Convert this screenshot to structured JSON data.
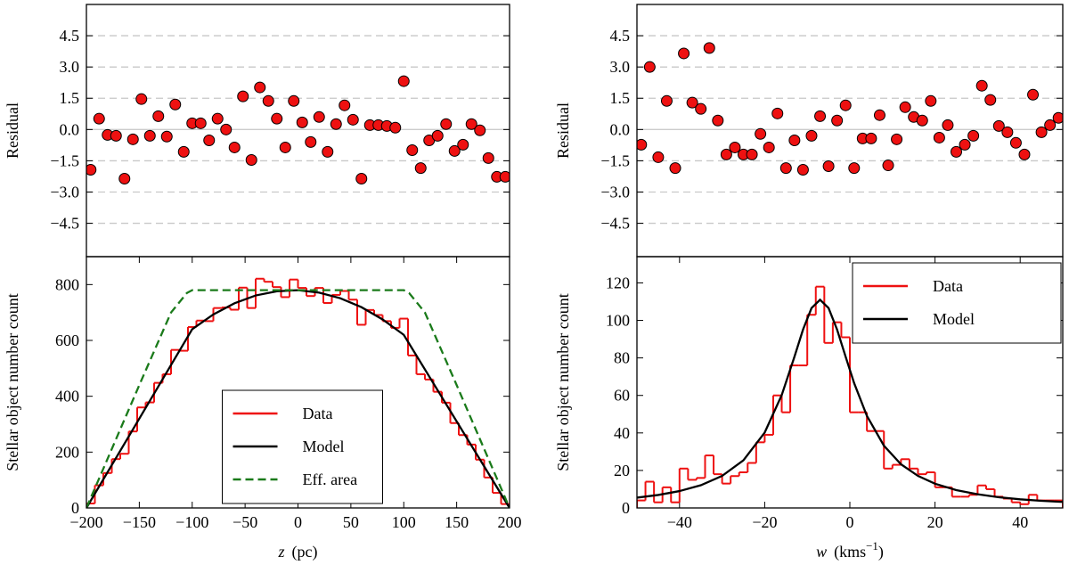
{
  "chart_data": [
    {
      "type": "scatter",
      "ylabel": "Residual",
      "color": "#ee1111",
      "grid": true,
      "xlim": [
        -200,
        200
      ],
      "ylim": [
        -6.1,
        6
      ],
      "yticks": [
        {
          "value": -4.5,
          "label": "−4.5"
        },
        {
          "value": -3,
          "label": "−3.0"
        },
        {
          "value": -1.5,
          "label": "−1.5"
        },
        {
          "value": 0,
          "label": "0.0"
        },
        1.5,
        {
          "value": 3,
          "label": "3.0"
        },
        4.5
      ],
      "x": [
        -196,
        -188,
        -180,
        -172,
        -164,
        -156,
        -148,
        -140,
        -132,
        -124,
        -116,
        -108,
        -100,
        -92,
        -84,
        -76,
        -68,
        -60,
        -52,
        -44,
        -36,
        -28,
        -20,
        -12,
        -4,
        4,
        12,
        20,
        28,
        36,
        44,
        52,
        60,
        68,
        76,
        84,
        92,
        100,
        108,
        116,
        124,
        132,
        140,
        148,
        156,
        164,
        172,
        180,
        188,
        196
      ],
      "values": [
        -1.93,
        0.52,
        -0.26,
        -0.3,
        -2.36,
        -0.47,
        1.46,
        -0.3,
        0.64,
        -0.34,
        1.2,
        -1.07,
        0.3,
        0.3,
        -0.52,
        0.52,
        0,
        -0.86,
        1.59,
        -1.46,
        2.02,
        1.37,
        0.52,
        -0.86,
        1.37,
        0.34,
        -0.6,
        0.6,
        -1.07,
        0.26,
        1.16,
        0.47,
        -2.36,
        0.21,
        0.21,
        0.17,
        0.09,
        2.32,
        -0.99,
        -1.85,
        -0.52,
        -0.3,
        0.26,
        -1.03,
        -0.73,
        0.26,
        -0.04,
        -1.37,
        -2.27,
        -2.27
      ]
    },
    {
      "type": "histogram",
      "ylabel": "Stellar object number count",
      "xlabel": [
        "z",
        "(pc)"
      ],
      "legend": "lower center",
      "xlim": [
        -200,
        200
      ],
      "ylim": [
        0,
        900
      ],
      "xticks": [
        {
          "value": -200,
          "label": "−200"
        },
        {
          "value": -150,
          "label": "−150"
        },
        {
          "value": -100,
          "label": "−100"
        },
        {
          "value": -50,
          "label": "−50"
        },
        0,
        50,
        100,
        150,
        200
      ],
      "yticks": [
        0,
        200,
        400,
        600,
        800
      ],
      "series": [
        {
          "name": "Data",
          "color": "#ee1111",
          "bins": [
            -200,
            -192,
            -184,
            -176,
            -168,
            -160,
            -152,
            -144,
            -136,
            -128,
            -120,
            -112,
            -104,
            -96,
            -88,
            -80,
            -72,
            -64,
            -56,
            -48,
            -40,
            -32,
            -24,
            -16,
            -8,
            0,
            8,
            16,
            24,
            32,
            40,
            48,
            56,
            64,
            72,
            80,
            88,
            96,
            104,
            112,
            120,
            128,
            136,
            144,
            152,
            160,
            168,
            176,
            184,
            192,
            200
          ],
          "values": [
            16,
            81,
            125,
            175,
            194,
            274,
            360,
            378,
            448,
            479,
            566,
            563,
            648,
            671,
            669,
            716,
            718,
            710,
            789,
            716,
            821,
            810,
            791,
            755,
            818,
            788,
            759,
            788,
            734,
            763,
            777,
            746,
            656,
            709,
            691,
            669,
            645,
            678,
            546,
            479,
            460,
            416,
            377,
            304,
            261,
            227,
            173,
            109,
            54,
            14
          ]
        },
        {
          "name": "Model",
          "color": "#000000",
          "x": [
            -200,
            -180,
            -160,
            -140,
            -120,
            -100,
            -80,
            -60,
            -40,
            -20,
            0,
            20,
            40,
            60,
            80,
            100,
            120,
            140,
            160,
            180,
            200
          ],
          "values": [
            0,
            128,
            256,
            384,
            512,
            640,
            693,
            733,
            761,
            776,
            780,
            771,
            751,
            719,
            675,
            620,
            496,
            372,
            248,
            124,
            0
          ]
        },
        {
          "name": "Eff. area",
          "color": "#1a7a1a",
          "dashed": true,
          "x": [
            -200,
            -150,
            -120,
            -105,
            -100,
            100,
            105,
            120,
            150,
            200
          ],
          "values": [
            0,
            440,
            700,
            770,
            780,
            780,
            770,
            700,
            440,
            0
          ]
        }
      ]
    },
    {
      "type": "scatter",
      "ylabel": "Residual",
      "color": "#ee1111",
      "grid": true,
      "xlim": [
        -50,
        50
      ],
      "ylim": [
        -6.1,
        6
      ],
      "yticks": [
        {
          "value": -4.5,
          "label": "−4.5"
        },
        {
          "value": -3,
          "label": "−3.0"
        },
        {
          "value": -1.5,
          "label": "−1.5"
        },
        {
          "value": 0,
          "label": "0.0"
        },
        1.5,
        {
          "value": 3,
          "label": "3.0"
        },
        4.5
      ],
      "x": [
        -49,
        -47,
        -45,
        -43,
        -41,
        -39,
        -37,
        -35,
        -33,
        -31,
        -29,
        -27,
        -25,
        -23,
        -21,
        -19,
        -17,
        -15,
        -13,
        -11,
        -9,
        -7,
        -5,
        -3,
        -1,
        1,
        3,
        5,
        7,
        9,
        11,
        13,
        15,
        17,
        19,
        21,
        23,
        25,
        27,
        29,
        31,
        33,
        35,
        37,
        39,
        41,
        43,
        45,
        47,
        49
      ],
      "values": [
        -0.73,
        3.0,
        -1.33,
        1.37,
        -1.85,
        3.65,
        1.29,
        0.99,
        3.91,
        0.43,
        -1.2,
        -0.86,
        -1.2,
        -1.2,
        -0.21,
        -0.86,
        0.77,
        -1.85,
        -0.52,
        -1.93,
        -0.3,
        0.64,
        -1.76,
        0.43,
        1.16,
        -1.85,
        -0.43,
        -0.43,
        0.69,
        -1.72,
        -0.47,
        1.07,
        0.6,
        0.43,
        1.37,
        -0.39,
        0.21,
        -1.07,
        -0.73,
        -0.3,
        2.1,
        1.42,
        0.17,
        -0.13,
        -0.64,
        -1.2,
        1.67,
        -0.13,
        0.21,
        0.56
      ]
    },
    {
      "type": "histogram",
      "ylabel": "Stellar object number count",
      "xlabel": [
        "w",
        "(kms",
        "−1",
        ")"
      ],
      "legend": "upper right",
      "xlim": [
        -50,
        50
      ],
      "ylim": [
        0,
        134
      ],
      "xticks": [
        {
          "value": -40,
          "label": "−40"
        },
        {
          "value": -20,
          "label": "−20"
        },
        0,
        20,
        40
      ],
      "yticks": [
        0,
        20,
        40,
        60,
        80,
        100,
        120
      ],
      "series": [
        {
          "name": "Data",
          "color": "#ee1111",
          "bins": [
            -50,
            -48,
            -46,
            -44,
            -42,
            -40,
            -38,
            -36,
            -34,
            -32,
            -30,
            -28,
            -26,
            -24,
            -22,
            -20,
            -18,
            -16,
            -14,
            -12,
            -10,
            -8,
            -6,
            -4,
            -2,
            0,
            2,
            4,
            6,
            8,
            10,
            12,
            14,
            16,
            18,
            20,
            22,
            24,
            26,
            28,
            30,
            32,
            34,
            36,
            38,
            40,
            42,
            44,
            46,
            48,
            50
          ],
          "values": [
            4,
            14,
            3,
            11,
            3,
            21,
            15,
            16,
            28,
            18,
            13,
            17,
            19,
            24,
            35,
            39,
            60,
            51,
            76,
            76,
            103,
            118,
            88,
            99,
            91,
            51,
            51,
            41,
            41,
            21,
            23,
            26,
            21,
            18,
            19,
            11,
            11,
            6,
            6,
            7,
            12,
            10,
            6,
            5,
            3,
            2,
            7,
            4,
            4,
            4
          ]
        },
        {
          "name": "Model",
          "color": "#000000",
          "x": [
            -50,
            -45,
            -40,
            -35,
            -30,
            -25,
            -20,
            -16,
            -13,
            -11,
            -9,
            -7,
            -5,
            -3,
            -1,
            1,
            4,
            8,
            12,
            16,
            20,
            25,
            30,
            35,
            40,
            45,
            50
          ],
          "values": [
            5.48,
            6.92,
            9.0,
            12.1,
            17.1,
            25.4,
            40.2,
            60.2,
            80.7,
            95.1,
            106.6,
            111,
            106.6,
            95.1,
            80.7,
            66.6,
            49.1,
            33.2,
            23.3,
            17.1,
            12.9,
            9.5,
            7.3,
            5.7,
            4.6,
            3.8,
            3.2
          ]
        }
      ]
    }
  ]
}
